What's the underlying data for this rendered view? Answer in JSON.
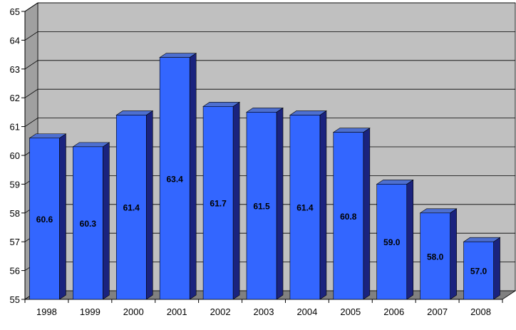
{
  "chart_data": {
    "type": "bar",
    "title": "",
    "xlabel": "",
    "ylabel": "",
    "categories": [
      "1998",
      "1999",
      "2000",
      "2001",
      "2002",
      "2003",
      "2004",
      "2005",
      "2006",
      "2007",
      "2008"
    ],
    "values": [
      60.6,
      60.3,
      61.4,
      63.4,
      61.7,
      61.5,
      61.4,
      60.8,
      59.0,
      58.0,
      57.0
    ],
    "value_labels": [
      "60.6",
      "60.3",
      "61.4",
      "63.4",
      "61.7",
      "61.5",
      "61.4",
      "60.8",
      "59.0",
      "58.0",
      "57.0"
    ],
    "ylim": [
      55,
      65
    ],
    "y_ticks": [
      "55",
      "56",
      "57",
      "58",
      "59",
      "60",
      "61",
      "62",
      "63",
      "64",
      "65"
    ],
    "grid": true,
    "legend": "none",
    "style": "3d-column",
    "colors": {
      "bar_front": "#3366ff",
      "bar_side": "#1a237e",
      "bar_top": "#4d6fd0",
      "wall": "#c0c0c0",
      "floor": "#808080",
      "gridline": "#000000",
      "axis": "#000000"
    }
  }
}
